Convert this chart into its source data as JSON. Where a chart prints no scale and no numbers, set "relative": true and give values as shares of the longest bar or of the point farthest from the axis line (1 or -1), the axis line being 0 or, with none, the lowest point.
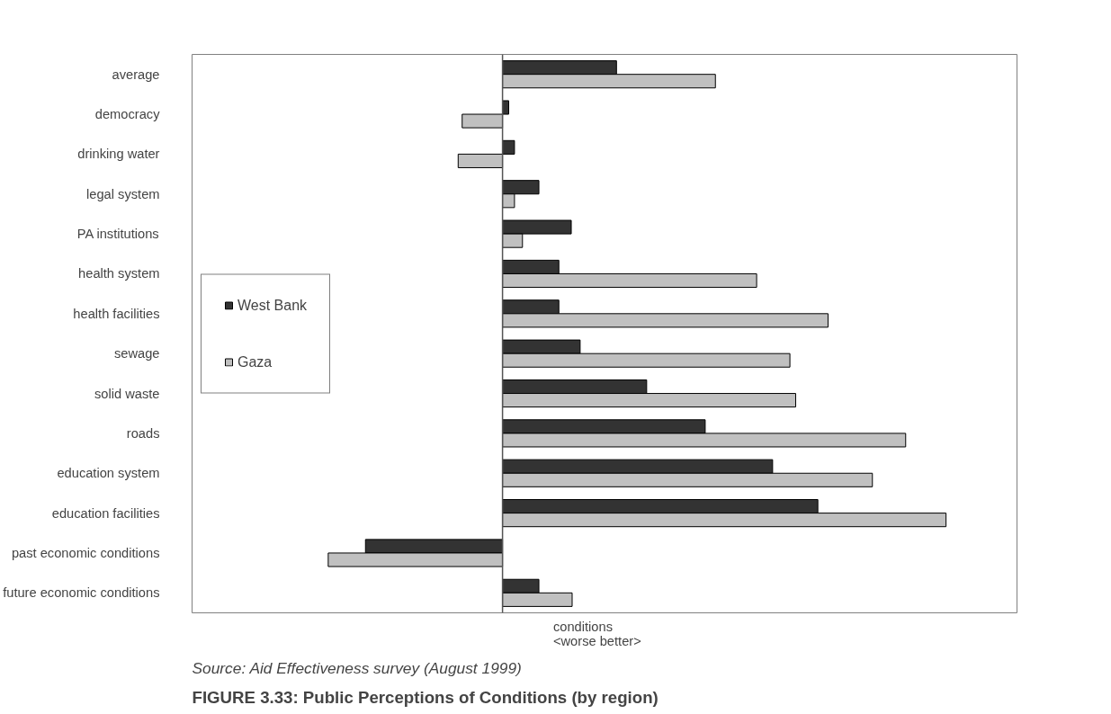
{
  "chart_data": {
    "type": "bar",
    "orientation": "horizontal",
    "relative": true,
    "title": "FIGURE 3.33: Public Perceptions of Conditions (by region)",
    "xlabel": "conditions\n<worse     better>",
    "annotations": [
      "Source: Aid Effectiveness survey (August 1999)"
    ],
    "categories": [
      "average",
      "democracy",
      "drinking water",
      "legal system",
      "PA institutions",
      "health system",
      "health facilities",
      "sewage",
      "solid waste",
      "roads",
      "education system",
      "education facilities",
      "past economic conditions",
      "future economic conditions"
    ],
    "series": [
      {
        "name": "West Bank",
        "color": "#333333",
        "values": [
          0.257,
          0.014,
          0.027,
          0.082,
          0.155,
          0.127,
          0.127,
          0.175,
          0.325,
          0.457,
          0.609,
          0.711,
          -0.309,
          0.082
        ]
      },
      {
        "name": "Gaza",
        "color": "#c0c0c0",
        "values": [
          0.48,
          -0.091,
          -0.1,
          0.027,
          0.045,
          0.573,
          0.734,
          0.648,
          0.661,
          0.909,
          0.834,
          1,
          -0.393,
          0.157
        ]
      }
    ],
    "legend": "left"
  }
}
